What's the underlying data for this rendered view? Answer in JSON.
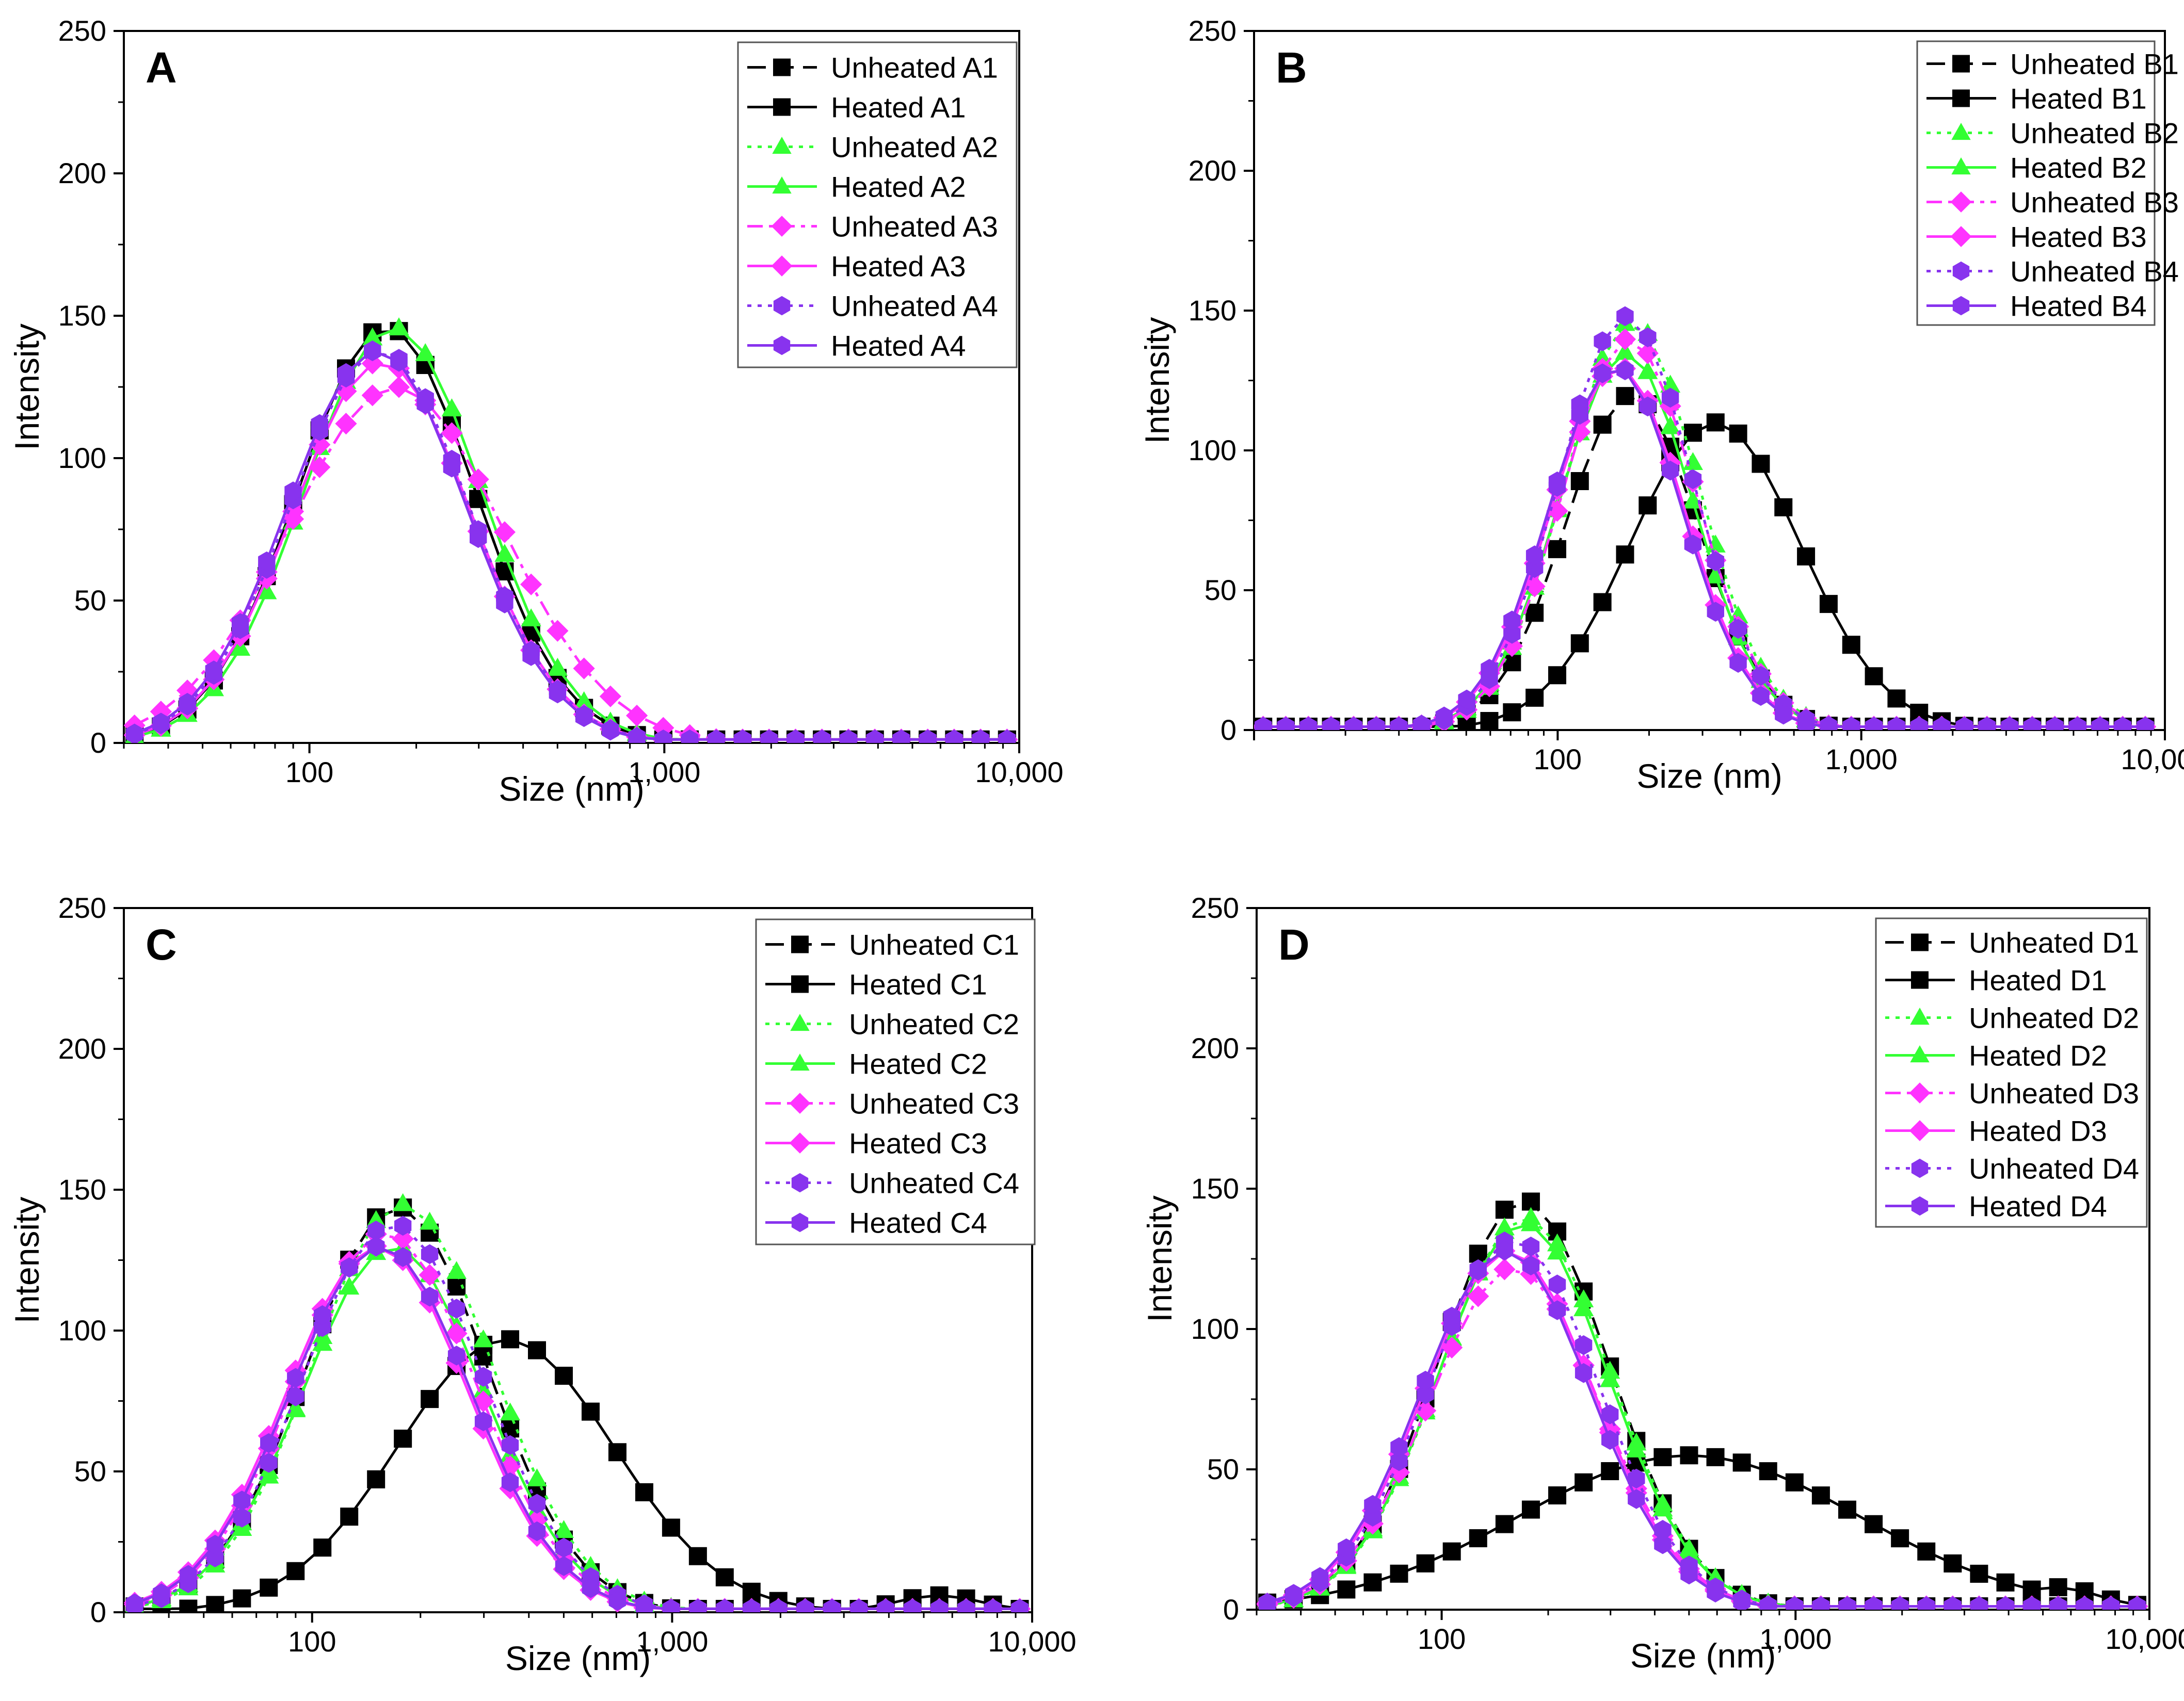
{
  "figure": {
    "x_tick_labels": [
      "100",
      "1,000",
      "10,000"
    ],
    "y_tick_labels": [
      "0",
      "50",
      "100",
      "150",
      "200",
      "250"
    ]
  },
  "series_styles": {
    "Unheated 1": {
      "color": "#000000",
      "marker": "square",
      "dash": "dash"
    },
    "Heated 1": {
      "color": "#000000",
      "marker": "square",
      "dash": "solid"
    },
    "Unheated 2": {
      "color": "#33ff33",
      "marker": "triangle",
      "dash": "dot"
    },
    "Heated 2": {
      "color": "#33ff33",
      "marker": "triangle",
      "dash": "solid"
    },
    "Unheated 3": {
      "color": "#ff33ff",
      "marker": "diamond",
      "dash": "dashdot"
    },
    "Heated 3": {
      "color": "#ff33ff",
      "marker": "diamond",
      "dash": "solid"
    },
    "Unheated 4": {
      "color": "#8833ee",
      "marker": "hexagon",
      "dash": "dot"
    },
    "Heated 4": {
      "color": "#8833ee",
      "marker": "hexagon",
      "dash": "solid"
    }
  },
  "chart_data": [
    {
      "type": "line",
      "panel": "A",
      "xlabel": "Size (nm)",
      "ylabel": "Intensity",
      "xscale": "log",
      "xlim": [
        30,
        10000
      ],
      "ylim": [
        0,
        250
      ],
      "legend_position": "top-right",
      "legend": [
        "Unheated A1",
        "Heated A1",
        "Unheated A2",
        "Heated A2",
        "Unheated A3",
        "Heated A3",
        "Unheated A4",
        "Heated A4"
      ],
      "series": [
        {
          "name": "Unheated A1",
          "peak": 146,
          "center": 165,
          "width": 0.25
        },
        {
          "name": "Heated A1",
          "peak": 146,
          "center": 165,
          "width": 0.25
        },
        {
          "name": "Unheated A2",
          "peak": 146,
          "center": 172,
          "width": 0.25
        },
        {
          "name": "Heated A2",
          "peak": 146,
          "center": 172,
          "width": 0.25
        },
        {
          "name": "Unheated A3",
          "peak": 125,
          "center": 175,
          "width": 0.3
        },
        {
          "name": "Heated A3",
          "peak": 134,
          "center": 160,
          "width": 0.25
        },
        {
          "name": "Unheated A4",
          "peak": 138,
          "center": 158,
          "width": 0.25
        },
        {
          "name": "Heated A4",
          "peak": 138,
          "center": 155,
          "width": 0.25
        }
      ]
    },
    {
      "type": "line",
      "panel": "B",
      "xlabel": "Size (nm)",
      "ylabel": "Intensity",
      "xscale": "log",
      "xlim": [
        10,
        10000
      ],
      "ylim": [
        0,
        250
      ],
      "legend_position": "top-right",
      "legend": [
        "Unheated B1",
        "Heated B1",
        "Unheated B2",
        "Heated B2",
        "Unheated B3",
        "Heated B3",
        "Unheated B4",
        "Heated B4"
      ],
      "series": [
        {
          "name": "Unheated B1",
          "peak": 120,
          "center": 175,
          "width": 0.22
        },
        {
          "name": "Heated B1",
          "peak": 110,
          "center": 330,
          "width": 0.28
        },
        {
          "name": "Unheated B2",
          "peak": 146,
          "center": 175,
          "width": 0.22
        },
        {
          "name": "Heated B2",
          "peak": 135,
          "center": 168,
          "width": 0.22
        },
        {
          "name": "Unheated B3",
          "peak": 140,
          "center": 172,
          "width": 0.22
        },
        {
          "name": "Heated B3",
          "peak": 130,
          "center": 158,
          "width": 0.22
        },
        {
          "name": "Unheated B4",
          "peak": 148,
          "center": 168,
          "width": 0.22
        },
        {
          "name": "Heated B4",
          "peak": 130,
          "center": 155,
          "width": 0.22
        }
      ]
    },
    {
      "type": "line",
      "panel": "C",
      "xlabel": "Size (nm)",
      "ylabel": "Intensity",
      "xscale": "log",
      "xlim": [
        30,
        10000
      ],
      "ylim": [
        0,
        250
      ],
      "legend_position": "top-right",
      "legend": [
        "Unheated C1",
        "Heated C1",
        "Unheated C2",
        "Heated C2",
        "Unheated C3",
        "Heated C3",
        "Unheated C4",
        "Heated C4"
      ],
      "series": [
        {
          "name": "Unheated C1",
          "peak": 144,
          "center": 172,
          "width": 0.25
        },
        {
          "name": "Heated C1",
          "peak": 97,
          "center": 345,
          "width": 0.3,
          "tail": {
            "x": 5500,
            "y": 6
          }
        },
        {
          "name": "Unheated C2",
          "peak": 145,
          "center": 178,
          "width": 0.25
        },
        {
          "name": "Heated C2",
          "peak": 130,
          "center": 168,
          "width": 0.25
        },
        {
          "name": "Unheated C3",
          "peak": 135,
          "center": 160,
          "width": 0.25
        },
        {
          "name": "Heated C3",
          "peak": 130,
          "center": 152,
          "width": 0.25
        },
        {
          "name": "Unheated C4",
          "peak": 138,
          "center": 168,
          "width": 0.25
        },
        {
          "name": "Heated C4",
          "peak": 130,
          "center": 155,
          "width": 0.25
        }
      ]
    },
    {
      "type": "line",
      "panel": "D",
      "xlabel": "Size (nm)",
      "ylabel": "Intensity",
      "xscale": "log",
      "xlim": [
        30,
        10000
      ],
      "ylim": [
        0,
        250
      ],
      "legend_position": "top-right",
      "legend": [
        "Unheated D1",
        "Heated D1",
        "Unheated D2",
        "Heated D2",
        "Unheated D3",
        "Heated D3",
        "Unheated D4",
        "Heated D4"
      ],
      "series": [
        {
          "name": "Unheated D1",
          "peak": 146,
          "center": 170,
          "width": 0.24
        },
        {
          "name": "Heated D1",
          "peak": 55,
          "center": 500,
          "width": 0.48,
          "tail": {
            "x": 5500,
            "y": 8
          }
        },
        {
          "name": "Unheated D2",
          "peak": 140,
          "center": 172,
          "width": 0.24
        },
        {
          "name": "Heated D2",
          "peak": 138,
          "center": 170,
          "width": 0.24
        },
        {
          "name": "Unheated D3",
          "peak": 122,
          "center": 160,
          "width": 0.24
        },
        {
          "name": "Heated D3",
          "peak": 128,
          "center": 155,
          "width": 0.24
        },
        {
          "name": "Unheated D4",
          "peak": 132,
          "center": 160,
          "width": 0.24
        },
        {
          "name": "Heated D4",
          "peak": 128,
          "center": 152,
          "width": 0.24
        }
      ]
    }
  ]
}
